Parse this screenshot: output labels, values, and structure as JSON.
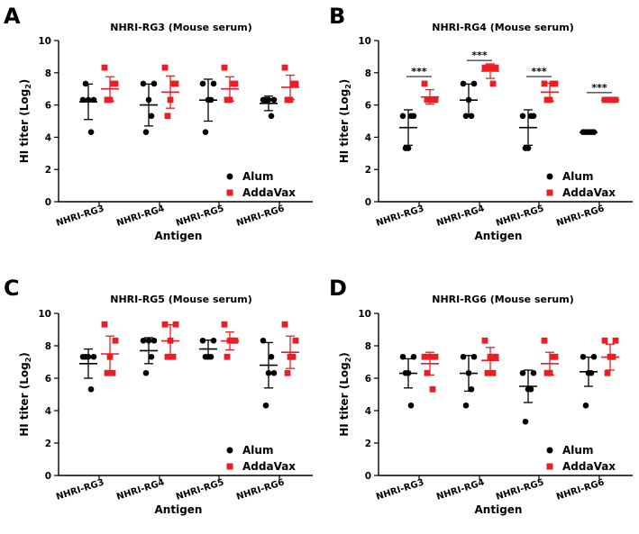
{
  "colors": {
    "alum": "#000000",
    "addavax": "#ee1c24",
    "axis": "#000000"
  },
  "chart_data": [
    {
      "panel": "A",
      "type": "scatter",
      "title": "NHRI-RG3 (Mouse serum)",
      "xlabel": "Antigen",
      "ylabel": "HI titer (Log2)",
      "ylabel_main": "HI titer (Log",
      "ylabel_sub": "2",
      "ylabel_end": ")",
      "ylim": [
        0,
        10
      ],
      "yticks": [
        "0",
        "2",
        "4",
        "6",
        "8",
        "10"
      ],
      "categories": [
        "NHRI-RG3",
        "NHRI-RG4",
        "NHRI-RG5",
        "NHRI-RG6"
      ],
      "series": [
        {
          "name": "Alum",
          "marker": "circle",
          "points": [
            [
              6.32,
              6.32,
              6.32,
              7.32,
              4.32
            ],
            [
              7.32,
              7.32,
              6.32,
              4.32,
              5.32
            ],
            [
              7.32,
              7.32,
              6.32,
              4.32,
              6.32
            ],
            [
              6.32,
              6.32,
              6.32,
              6.32,
              5.32
            ]
          ],
          "mean": [
            6.2,
            6.0,
            6.3,
            6.1
          ],
          "sd": [
            1.1,
            1.3,
            1.3,
            0.45
          ]
        },
        {
          "name": "AddaVax",
          "marker": "square",
          "points": [
            [
              8.32,
              7.32,
              6.32,
              6.32,
              7.32
            ],
            [
              8.32,
              7.32,
              6.32,
              5.32,
              7.32
            ],
            [
              8.32,
              7.32,
              6.32,
              6.32,
              7.32
            ],
            [
              8.32,
              7.32,
              6.32,
              6.32,
              7.32
            ]
          ],
          "mean": [
            7.0,
            6.8,
            7.0,
            7.1
          ],
          "sd": [
            0.75,
            1.0,
            0.75,
            0.75
          ]
        }
      ],
      "significance": []
    },
    {
      "panel": "B",
      "type": "scatter",
      "title": "NHRI-RG4 (Mouse serum)",
      "xlabel": "Antigen",
      "ylabel": "HI titer (Log2)",
      "ylabel_main": "HI titer (Log",
      "ylabel_sub": "2",
      "ylabel_end": ")",
      "ylim": [
        0,
        10
      ],
      "yticks": [
        "0",
        "2",
        "4",
        "6",
        "8",
        "10"
      ],
      "categories": [
        "NHRI-RG3",
        "NHRI-RG4",
        "NHRI-RG5",
        "NHRI-RG6"
      ],
      "series": [
        {
          "name": "Alum",
          "marker": "circle",
          "points": [
            [
              5.32,
              5.32,
              3.32,
              3.32,
              5.32
            ],
            [
              7.32,
              7.32,
              6.32,
              5.32,
              5.32
            ],
            [
              5.32,
              5.32,
              3.32,
              3.32,
              5.32
            ],
            [
              4.32,
              4.32,
              4.32,
              4.32,
              4.32
            ]
          ],
          "mean": [
            4.6,
            6.3,
            4.6,
            4.3
          ],
          "sd": [
            1.1,
            1.0,
            1.1,
            0.05
          ]
        },
        {
          "name": "AddaVax",
          "marker": "square",
          "points": [
            [
              7.32,
              6.32,
              6.32,
              6.32,
              6.32
            ],
            [
              8.32,
              8.32,
              8.32,
              8.32,
              7.32
            ],
            [
              7.32,
              7.32,
              6.32,
              6.32,
              7.32
            ],
            [
              6.32,
              6.32,
              6.32,
              6.32,
              6.32
            ]
          ],
          "mean": [
            6.5,
            8.1,
            6.8,
            6.3
          ],
          "sd": [
            0.45,
            0.45,
            0.55,
            0.05
          ]
        }
      ],
      "significance": [
        "***",
        "***",
        "***",
        "***"
      ]
    },
    {
      "panel": "C",
      "type": "scatter",
      "title": "NHRI-RG5 (Mouse serum)",
      "xlabel": "Antigen",
      "ylabel": "HI titer (Log2)",
      "ylabel_main": "HI titer (Log",
      "ylabel_sub": "2",
      "ylabel_end": ")",
      "ylim": [
        0,
        10
      ],
      "yticks": [
        "0",
        "2",
        "4",
        "6",
        "8",
        "10"
      ],
      "categories": [
        "NHRI-RG3",
        "NHRI-RG4",
        "NHRI-RG5",
        "NHRI-RG6"
      ],
      "series": [
        {
          "name": "Alum",
          "marker": "circle",
          "points": [
            [
              7.32,
              7.32,
              7.32,
              7.32,
              5.32
            ],
            [
              8.32,
              8.32,
              8.32,
              6.32,
              7.32
            ],
            [
              8.32,
              8.32,
              7.32,
              7.32,
              7.32
            ],
            [
              8.32,
              6.32,
              6.32,
              4.32,
              7.32
            ]
          ],
          "mean": [
            6.9,
            7.7,
            7.8,
            6.8
          ],
          "sd": [
            0.9,
            0.8,
            0.55,
            1.4
          ]
        },
        {
          "name": "AddaVax",
          "marker": "square",
          "points": [
            [
              9.32,
              8.32,
              7.32,
              6.32,
              6.32
            ],
            [
              9.32,
              9.32,
              8.32,
              7.32,
              7.32
            ],
            [
              9.32,
              8.32,
              8.32,
              7.32,
              8.32
            ],
            [
              9.32,
              8.32,
              7.32,
              6.32,
              7.32
            ]
          ],
          "mean": [
            7.5,
            8.3,
            8.3,
            7.6
          ],
          "sd": [
            1.1,
            1.0,
            0.55,
            1.0
          ]
        }
      ],
      "significance": []
    },
    {
      "panel": "D",
      "type": "scatter",
      "title": "NHRI-RG6 (Mouse serum)",
      "xlabel": "Antigen",
      "ylabel": "HI titer (Log2)",
      "ylabel_main": "HI titer (Log",
      "ylabel_sub": "2",
      "ylabel_end": ")",
      "ylim": [
        0,
        10
      ],
      "yticks": [
        "0",
        "2",
        "4",
        "6",
        "8",
        "10"
      ],
      "categories": [
        "NHRI-RG3",
        "NHRI-RG4",
        "NHRI-RG5",
        "NHRI-RG6"
      ],
      "series": [
        {
          "name": "Alum",
          "marker": "circle",
          "points": [
            [
              7.32,
              7.32,
              6.32,
              6.32,
              4.32
            ],
            [
              7.32,
              7.32,
              6.32,
              4.32,
              5.32
            ],
            [
              6.32,
              6.32,
              5.32,
              3.32,
              5.32
            ],
            [
              7.32,
              7.32,
              6.32,
              4.32,
              6.32
            ]
          ],
          "mean": [
            6.3,
            6.3,
            5.5,
            6.4
          ],
          "sd": [
            0.9,
            1.1,
            1.0,
            0.9
          ]
        },
        {
          "name": "AddaVax",
          "marker": "square",
          "points": [
            [
              7.32,
              7.32,
              7.32,
              6.32,
              5.32
            ],
            [
              8.32,
              7.32,
              7.32,
              6.32,
              6.32
            ],
            [
              8.32,
              7.32,
              6.32,
              6.32,
              7.32
            ],
            [
              8.32,
              8.32,
              7.32,
              6.32,
              7.32
            ]
          ],
          "mean": [
            6.9,
            7.1,
            6.9,
            7.3
          ],
          "sd": [
            0.7,
            0.8,
            0.7,
            0.8
          ]
        }
      ],
      "significance": []
    }
  ]
}
